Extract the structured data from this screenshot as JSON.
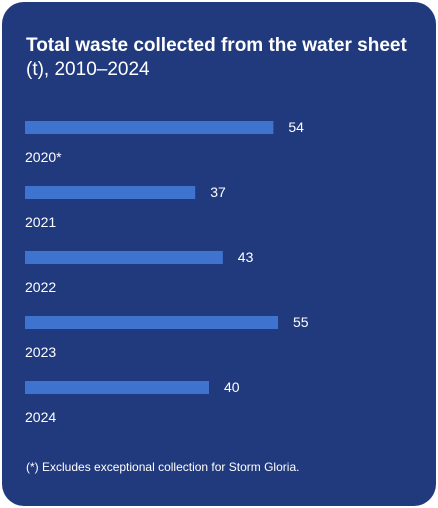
{
  "title": {
    "bold": "Total waste collected from the water sheet",
    "rest": "(t), 2010–2024"
  },
  "footnote": "(*) Excludes exceptional collection for Storm Gloria.",
  "colors": {
    "background": "#213a7e",
    "bar": "#3f73d0",
    "text": "#ffffff"
  },
  "chart_data": {
    "type": "bar",
    "orientation": "horizontal",
    "title": "Total waste collected from the water sheet (t), 2010–2024",
    "categories": [
      "2020*",
      "2021",
      "2022",
      "2023",
      "2024"
    ],
    "values": [
      54,
      37,
      43,
      55,
      40
    ],
    "xlim": [
      0,
      60
    ],
    "grid": false,
    "legend": "none"
  }
}
